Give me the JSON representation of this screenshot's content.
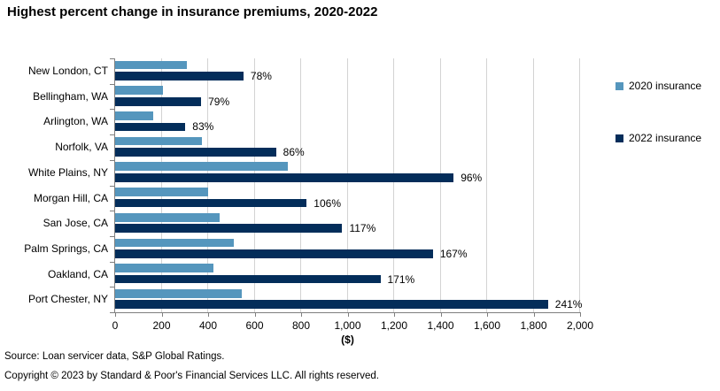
{
  "title": "Highest percent change in insurance premiums, 2020-2022",
  "chart_data": {
    "type": "bar",
    "orientation": "horizontal",
    "title": "Highest percent change in insurance premiums, 2020-2022",
    "categories": [
      "New London, CT",
      "Bellingham, WA",
      "Arlington, WA",
      "Norfolk, VA",
      "White Plains, NY",
      "Morgan Hill, CA",
      "San Jose, CA",
      "Palm Springs, CA",
      "Oakland, CA",
      "Port Chester, NY"
    ],
    "series": [
      {
        "name": "2020 insurance",
        "color": "#5596BD",
        "values": [
          310,
          207,
          165,
          372,
          743,
          400,
          450,
          512,
          421,
          546
        ]
      },
      {
        "name": "2022 insurance",
        "color": "#032D5A",
        "values": [
          552,
          370,
          302,
          692,
          1456,
          824,
          977,
          1367,
          1141,
          1862
        ]
      }
    ],
    "bar_labels": [
      "78%",
      "79%",
      "83%",
      "86%",
      "96%",
      "106%",
      "117%",
      "167%",
      "171%",
      "241%"
    ],
    "xlabel": "($)",
    "xlim": [
      0,
      2000
    ],
    "xtick_labels": [
      "0",
      "200",
      "400",
      "600",
      "800",
      "1,000",
      "1,200",
      "1,400",
      "1,600",
      "1,800",
      "2,000"
    ],
    "grid": true,
    "legend_position": "right",
    "gridline_color": "#D3D3D3",
    "axis_color": "#7F7F7F"
  },
  "footer": {
    "source": "Source: Loan servicer data, S&P Global Ratings.",
    "copyright": "Copyright © 2023 by Standard & Poor's Financial Services LLC. All rights reserved."
  }
}
